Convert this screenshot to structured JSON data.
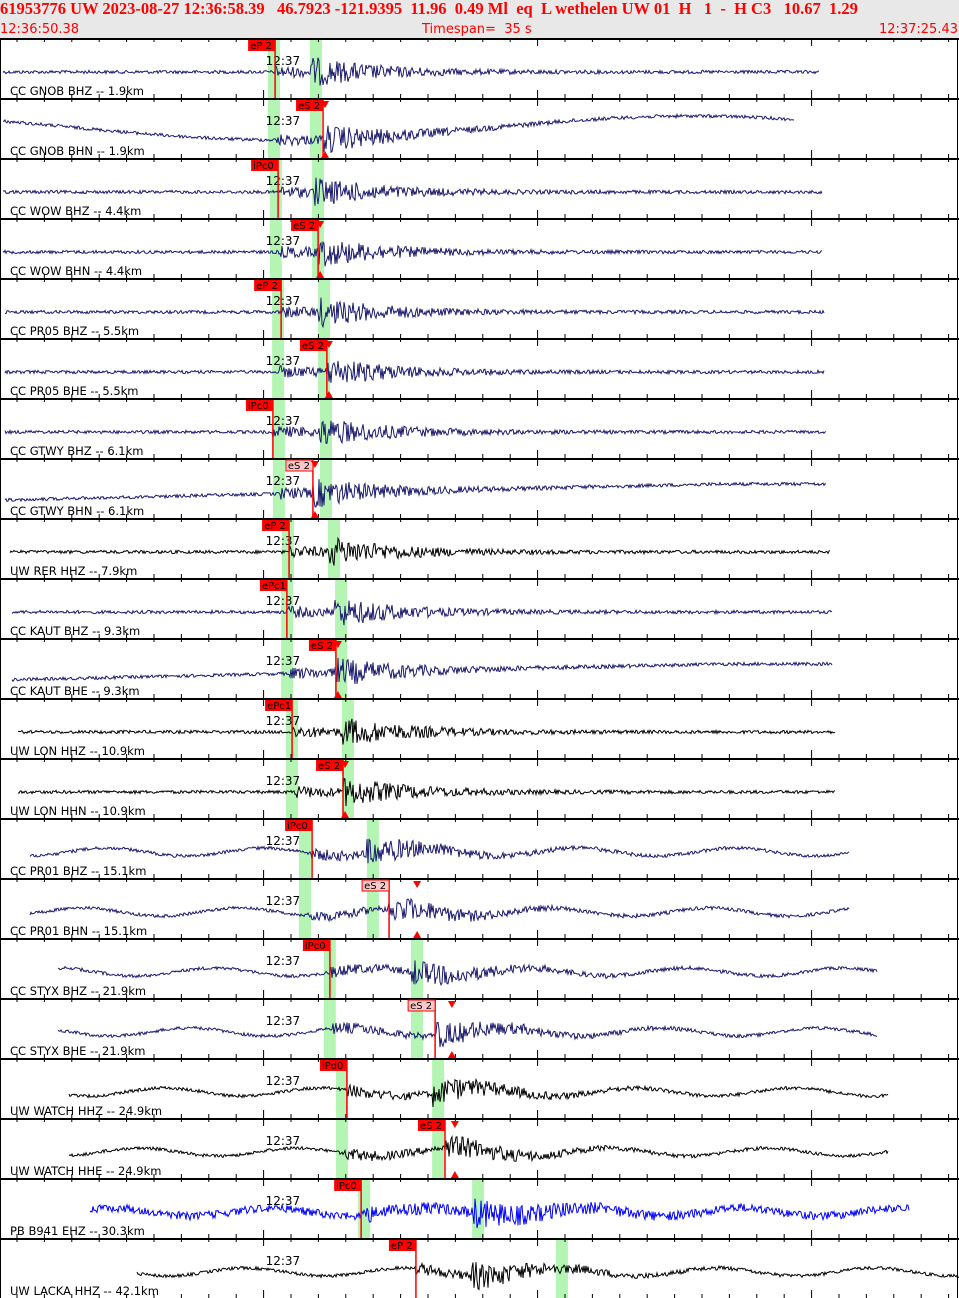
{
  "header": {
    "title": "61953776 UW 2023-08-27 12:36:58.39   46.7923 -121.9395  11.96  0.49 Ml  eq  L wethelen UW 01  H   1  -  H C3   10.67  1.29",
    "start_time": "12:36:50.38",
    "timespan": "Timespan=  35 s",
    "end_time": "12:37:25.43"
  },
  "axis": {
    "window_seconds": 35,
    "start_offset_to_minute": 9.62,
    "minute_label": "12:37"
  },
  "colors": {
    "navy": "#1a1a6e",
    "black": "#000000",
    "blue": "#0000ff",
    "pick": "#ff0000",
    "pick_soft": "#f8c8c8",
    "band": "#b4f5b4"
  },
  "traces": [
    {
      "label": "CC GNOB BHZ -- 1.9km",
      "color": "navy",
      "pick": "eP 2",
      "pick_t": 10.04,
      "style": "solid",
      "bands": [
        9.78,
        11.31
      ],
      "start": 0.1,
      "end": 29.9,
      "drift": "flat"
    },
    {
      "label": "CC GNOB BHN -- 1.9km",
      "color": "navy",
      "pick": "eS 2",
      "pick_t": 11.79,
      "style": "solid",
      "bands": [
        9.78,
        11.31
      ],
      "start": 0.1,
      "end": 29.0,
      "drift": "wave"
    },
    {
      "label": "CC WOW BHZ -- 4.4km",
      "color": "navy",
      "pick": "iPc0",
      "pick_t": 10.15,
      "style": "solid",
      "bands": [
        9.85,
        11.39
      ],
      "start": 0.1,
      "end": 30.0
    },
    {
      "label": "CC WOW BHN -- 4.4km",
      "color": "navy",
      "pick": "eS 2",
      "pick_t": 11.61,
      "style": "solid",
      "bands": [
        9.85,
        11.39
      ],
      "start": 0.1,
      "end": 30.0
    },
    {
      "label": "CC PR05 BHZ -- 5.5km",
      "color": "navy",
      "pick": "eP 2",
      "pick_t": 10.26,
      "style": "solid",
      "bands": [
        9.93,
        11.61
      ],
      "start": 0.2,
      "end": 30.1
    },
    {
      "label": "CC PR05 BHE -- 5.5km",
      "color": "navy",
      "pick": "eS 2",
      "pick_t": 11.93,
      "style": "solid",
      "bands": [
        9.93,
        11.61
      ],
      "start": 0.2,
      "end": 30.1
    },
    {
      "label": "CC GTWY BHZ -- 6.1km",
      "color": "navy",
      "pick": "iPc0",
      "pick_t": 9.96,
      "style": "solid",
      "bands": [
        9.96,
        11.68
      ],
      "start": 0.2,
      "end": 30.2
    },
    {
      "label": "CC GTWY BHN -- 6.1km",
      "color": "navy",
      "pick": "eS 2",
      "pick_t": 11.42,
      "style": "soft",
      "bands": [
        9.96,
        11.68
      ],
      "start": 0.2,
      "end": 30.2,
      "drift": "rise"
    },
    {
      "label": "UW RER HHZ -- 7.9km",
      "color": "black",
      "pick": "eP 2",
      "pick_t": 10.55,
      "style": "solid",
      "bands": [
        10.29,
        11.97
      ],
      "start": 0.35,
      "end": 30.3
    },
    {
      "label": "CC KAUT BHZ -- 9.3km",
      "color": "navy",
      "pick": "ePc1",
      "pick_t": 10.47,
      "style": "solid",
      "bands": [
        10.26,
        12.23
      ],
      "start": 0.45,
      "end": 30.4
    },
    {
      "label": "CC KAUT BHE -- 9.3km",
      "color": "navy",
      "pick": "eS 2",
      "pick_t": 12.26,
      "style": "solid",
      "bands": [
        10.26,
        12.23
      ],
      "start": 0.45,
      "end": 30.4,
      "drift": "rise"
    },
    {
      "label": "UW LON HHZ -- 10.9km",
      "color": "black",
      "pick": "ePc1",
      "pick_t": 10.66,
      "style": "solid",
      "bands": [
        10.44,
        12.48
      ],
      "start": 0.65,
      "end": 30.5
    },
    {
      "label": "UW LON HHN -- 10.9km",
      "color": "black",
      "pick": "eS 2",
      "pick_t": 12.52,
      "style": "solid",
      "bands": [
        10.44,
        12.48
      ],
      "start": 0.65,
      "end": 30.5
    },
    {
      "label": "CC PR01 BHZ -- 15.1km",
      "color": "navy",
      "pick": "iPc0",
      "pick_t": 11.39,
      "style": "solid",
      "bands": [
        10.91,
        13.39
      ],
      "start": 1.1,
      "end": 31.0
    },
    {
      "label": "CC PR01 BHN -- 15.1km",
      "color": "navy",
      "pick": "eS 2",
      "pick_t": 14.2,
      "style": "soft",
      "bands": [
        10.91,
        13.39
      ],
      "start": 1.1,
      "end": 31.0,
      "marker_t": 15.15
    },
    {
      "label": "CC STYX BHZ -- 21.9km",
      "color": "navy",
      "pick": "iPc0",
      "pick_t": 12.04,
      "style": "solid",
      "bands": [
        11.82,
        15.0
      ],
      "start": 2.1,
      "end": 32.0
    },
    {
      "label": "CC STYX BHE -- 21.9km",
      "color": "navy",
      "pick": "eS 2",
      "pick_t": 15.88,
      "style": "soft",
      "bands": [
        11.82,
        15.0
      ],
      "start": 2.1,
      "end": 32.0,
      "marker_t": 16.42
    },
    {
      "label": "UW WATCH HHZ -- 24.9km",
      "color": "black",
      "pick": "iPd0",
      "pick_t": 12.66,
      "style": "solid",
      "bands": [
        12.26,
        15.77
      ],
      "start": 2.5,
      "end": 32.4
    },
    {
      "label": "UW WATCH HHE -- 24.9km",
      "color": "black",
      "pick": "eS 2",
      "pick_t": 16.24,
      "style": "solid",
      "bands": [
        12.26,
        15.77
      ],
      "start": 2.5,
      "end": 32.4,
      "marker_t": 16.53
    },
    {
      "label": "PB B941 EHZ -- 30.3km",
      "color": "blue",
      "pick": "iPc0",
      "pick_t": 13.18,
      "style": "solid",
      "bands": [
        13.07,
        17.23
      ],
      "start": 3.3,
      "end": 33.2
    },
    {
      "label": "UW LACKA HHZ -- 42.1km",
      "color": "black",
      "pick": "eP 2",
      "pick_t": 15.18,
      "style": "solid",
      "bands": [
        20.29
      ],
      "start": 5.0,
      "end": 35.0
    }
  ]
}
